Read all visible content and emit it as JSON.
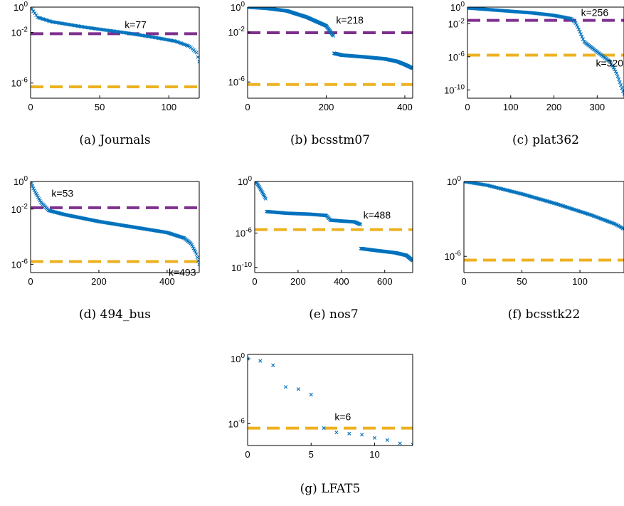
{
  "colors": {
    "data": "#0072BD",
    "purple": "#7E2F8E",
    "orange": "#EDB120"
  },
  "chart_data": [
    {
      "id": "a",
      "type": "scatter",
      "caption": "(a) Journals",
      "yscale": "log",
      "xlim": [
        0,
        122
      ],
      "xticks": [
        0,
        50,
        100
      ],
      "xticklabels": [
        "0",
        "50",
        "100"
      ],
      "ylog_range": [
        -7.2,
        0
      ],
      "yticks": [
        0,
        -2,
        -6
      ],
      "purple_threshold": -2.1,
      "orange_threshold": -6.3,
      "annotations": [
        {
          "text": "k=77",
          "at_x": 77,
          "at_y_log": -2.1,
          "pos": "above"
        }
      ],
      "series": [
        {
          "marker": "x",
          "segments": [
            {
              "x": [
                0,
                5,
                15,
                40,
                70,
                90,
                105,
                115,
                120,
                122
              ],
              "ylog": [
                0,
                -0.8,
                -1.15,
                -1.6,
                -2.05,
                -2.4,
                -2.7,
                -3.1,
                -3.6,
                -4.3
              ],
              "n": 122
            }
          ]
        }
      ]
    },
    {
      "id": "b",
      "type": "scatter",
      "caption": "(b) bcsstm07",
      "yscale": "log",
      "xlim": [
        0,
        420
      ],
      "xticks": [
        0,
        200,
        400
      ],
      "xticklabels": [
        "0",
        "200",
        "400"
      ],
      "ylog_range": [
        -7.3,
        0
      ],
      "yticks": [
        0,
        -2,
        -6
      ],
      "purple_threshold": -2.05,
      "orange_threshold": -6.2,
      "annotations": [
        {
          "text": "k=218",
          "at_x": 218,
          "at_y_log": -1.2,
          "pos": "right"
        }
      ],
      "series": [
        {
          "marker": "x",
          "segments": [
            {
              "x": [
                0,
                50,
                100,
                150,
                200,
                218
              ],
              "ylog": [
                0,
                -0.1,
                -0.3,
                -0.8,
                -1.5,
                -2.3
              ],
              "n": 150
            },
            {
              "x": [
                220,
                240,
                300,
                350,
                380,
                400,
                420
              ],
              "ylog": [
                -3.7,
                -3.85,
                -4.0,
                -4.15,
                -4.35,
                -4.6,
                -4.9
              ],
              "n": 180
            }
          ]
        }
      ]
    },
    {
      "id": "c",
      "type": "scatter",
      "caption": "(c) plat362",
      "yscale": "log",
      "xlim": [
        0,
        362
      ],
      "xticks": [
        0,
        100,
        200,
        300
      ],
      "xticklabels": [
        "0",
        "100",
        "200",
        "300"
      ],
      "ylog_range": [
        -11,
        0
      ],
      "yticks": [
        0,
        -2,
        -6,
        -10
      ],
      "purple_threshold": -1.6,
      "orange_threshold": -5.8,
      "annotations": [
        {
          "text": "k=256",
          "at_x": 256,
          "at_y_log": -1.6,
          "pos": "above-right"
        },
        {
          "text": "k=320",
          "at_x": 320,
          "at_y_log": -5.8,
          "pos": "below"
        }
      ],
      "series": [
        {
          "marker": "x",
          "segments": [
            {
              "x": [
                0,
                50,
                100,
                150,
                200,
                240,
                250,
                256,
                270,
                290,
                310,
                330,
                345,
                362
              ],
              "ylog": [
                -0.1,
                -0.3,
                -0.5,
                -0.7,
                -1.0,
                -1.4,
                -1.9,
                -2.5,
                -4.2,
                -5.0,
                -5.8,
                -6.6,
                -8.0,
                -10.5
              ],
              "n": 150
            }
          ]
        }
      ]
    },
    {
      "id": "d",
      "type": "scatter",
      "caption": "(d) 494_bus",
      "yscale": "log",
      "xlim": [
        0,
        494
      ],
      "xticks": [
        0,
        200,
        400
      ],
      "xticklabels": [
        "0",
        "200",
        "400"
      ],
      "ylog_range": [
        -6.6,
        0
      ],
      "yticks": [
        0,
        -2,
        -6
      ],
      "purple_threshold": -1.9,
      "orange_threshold": -5.8,
      "annotations": [
        {
          "text": "k=53",
          "at_x": 53,
          "at_y_log": -1.0,
          "pos": "right"
        },
        {
          "text": "k=493",
          "at_x": 493,
          "at_y_log": -6.1,
          "pos": "left"
        }
      ],
      "series": [
        {
          "marker": "x",
          "segments": [
            {
              "x": [
                0,
                10,
                30,
                53,
                100,
                200,
                300,
                400,
                450,
                470,
                485,
                494
              ],
              "ylog": [
                0,
                -0.6,
                -1.5,
                -2.1,
                -2.4,
                -2.9,
                -3.3,
                -3.7,
                -4.1,
                -4.5,
                -5.2,
                -6.0
              ],
              "n": 180
            }
          ]
        }
      ]
    },
    {
      "id": "e",
      "type": "scatter",
      "caption": "(e) nos7",
      "yscale": "log",
      "xlim": [
        0,
        729
      ],
      "xticks": [
        0,
        200,
        400,
        600
      ],
      "xticklabels": [
        "0",
        "200",
        "400",
        "600"
      ],
      "ylog_range": [
        -10.6,
        0
      ],
      "yticks": [
        0,
        -6,
        -10
      ],
      "purple_threshold": null,
      "orange_threshold": -5.6,
      "annotations": [
        {
          "text": "k=488",
          "at_x": 488,
          "at_y_log": -4.8,
          "pos": "above-right"
        }
      ],
      "series": [
        {
          "marker": "x",
          "segments": [
            {
              "x": [
                0,
                10,
                20,
                40,
                50
              ],
              "ylog": [
                0,
                -0.2,
                -0.6,
                -1.5,
                -2.0
              ],
              "n": 16
            },
            {
              "x": [
                55,
                150,
                250,
                330,
                350,
                400,
                460,
                488
              ],
              "ylog": [
                -3.5,
                -3.7,
                -3.8,
                -3.95,
                -4.5,
                -4.6,
                -4.7,
                -5.0
              ],
              "n": 120
            },
            {
              "x": [
                490,
                550,
                650,
                700,
                729
              ],
              "ylog": [
                -7.8,
                -8.0,
                -8.3,
                -8.6,
                -9.2
              ],
              "n": 90
            }
          ]
        }
      ]
    },
    {
      "id": "f",
      "type": "scatter",
      "caption": "(f) bcsstk22",
      "yscale": "log",
      "xlim": [
        0,
        138
      ],
      "xticks": [
        0,
        50,
        100
      ],
      "xticklabels": [
        "0",
        "50",
        "100"
      ],
      "ylog_range": [
        -7.3,
        0
      ],
      "yticks": [
        0,
        -6
      ],
      "purple_threshold": null,
      "orange_threshold": -6.3,
      "annotations": [],
      "series": [
        {
          "marker": "x",
          "segments": [
            {
              "x": [
                0,
                20,
                50,
                80,
                110,
                130,
                138
              ],
              "ylog": [
                0,
                -0.3,
                -1.0,
                -1.8,
                -2.7,
                -3.4,
                -3.8
              ],
              "n": 138
            }
          ]
        }
      ]
    },
    {
      "id": "g",
      "type": "scatter",
      "caption": "(g) LFAT5",
      "yscale": "log",
      "xlim": [
        0,
        13
      ],
      "xticks": [
        0,
        5,
        10
      ],
      "xticklabels": [
        "0",
        "5",
        "10"
      ],
      "ylog_range": [
        -8,
        0.4
      ],
      "yticks": [
        0,
        -6
      ],
      "purple_threshold": null,
      "orange_threshold": -6.4,
      "annotations": [
        {
          "text": "k=6",
          "at_x": 7.5,
          "at_y_log": -5.8,
          "pos": "center"
        }
      ],
      "series": [
        {
          "marker": "x",
          "points": {
            "x": [
              0,
              1,
              2,
              3,
              4,
              5,
              6,
              7,
              8,
              9,
              10,
              11,
              12,
              13
            ],
            "ylog": [
              0,
              -0.2,
              -0.6,
              -2.6,
              -2.8,
              -3.3,
              -6.4,
              -6.8,
              -6.9,
              -7.0,
              -7.3,
              -7.5,
              -7.8,
              -7.9
            ]
          }
        }
      ]
    }
  ]
}
